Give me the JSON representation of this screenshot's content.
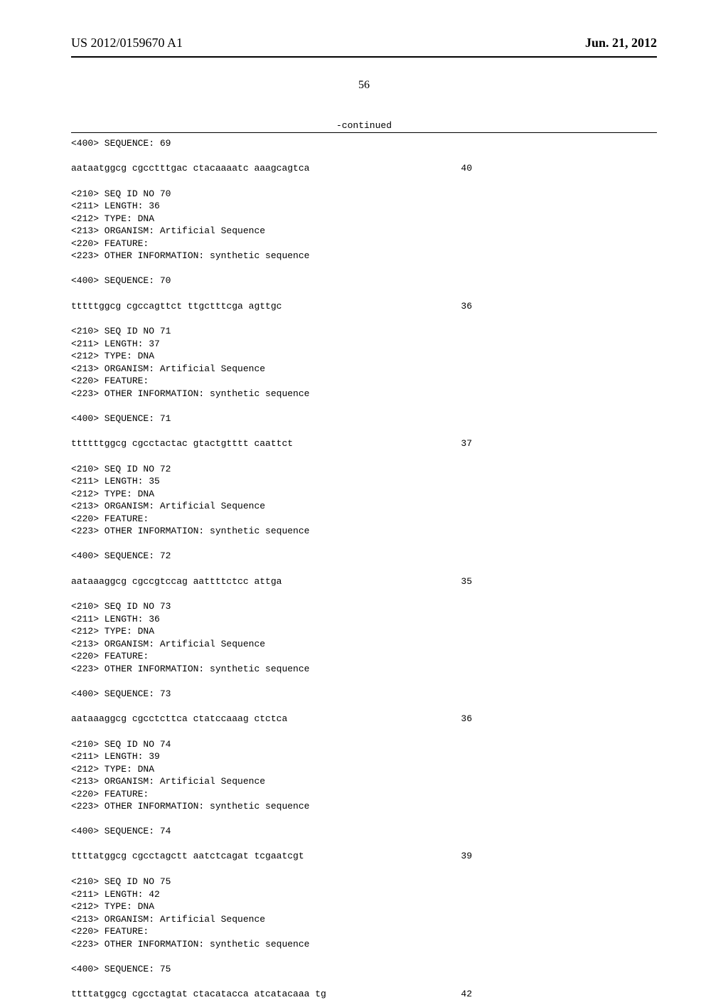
{
  "header": {
    "publication_number": "US 2012/0159670 A1",
    "publication_date": "Jun. 21, 2012"
  },
  "page_number": "56",
  "continued_label": "-continued",
  "sequences": [
    {
      "header_lines": [
        "<400> SEQUENCE: 69"
      ],
      "sequence": "aataatggcg cgcctttgac ctacaaaatc aaagcagtca",
      "length": "40"
    },
    {
      "header_lines": [
        "<210> SEQ ID NO 70",
        "<211> LENGTH: 36",
        "<212> TYPE: DNA",
        "<213> ORGANISM: Artificial Sequence",
        "<220> FEATURE:",
        "<223> OTHER INFORMATION: synthetic sequence",
        "",
        "<400> SEQUENCE: 70"
      ],
      "sequence": "tttttggcg cgccagttct ttgctttcga agttgc",
      "length": "36"
    },
    {
      "header_lines": [
        "<210> SEQ ID NO 71",
        "<211> LENGTH: 37",
        "<212> TYPE: DNA",
        "<213> ORGANISM: Artificial Sequence",
        "<220> FEATURE:",
        "<223> OTHER INFORMATION: synthetic sequence",
        "",
        "<400> SEQUENCE: 71"
      ],
      "sequence": "ttttttggcg cgcctactac gtactgtttt caattct",
      "length": "37"
    },
    {
      "header_lines": [
        "<210> SEQ ID NO 72",
        "<211> LENGTH: 35",
        "<212> TYPE: DNA",
        "<213> ORGANISM: Artificial Sequence",
        "<220> FEATURE:",
        "<223> OTHER INFORMATION: synthetic sequence",
        "",
        "<400> SEQUENCE: 72"
      ],
      "sequence": "aataaaggcg cgccgtccag aattttctcc attga",
      "length": "35"
    },
    {
      "header_lines": [
        "<210> SEQ ID NO 73",
        "<211> LENGTH: 36",
        "<212> TYPE: DNA",
        "<213> ORGANISM: Artificial Sequence",
        "<220> FEATURE:",
        "<223> OTHER INFORMATION: synthetic sequence",
        "",
        "<400> SEQUENCE: 73"
      ],
      "sequence": "aataaaggcg cgcctcttca ctatccaaag ctctca",
      "length": "36"
    },
    {
      "header_lines": [
        "<210> SEQ ID NO 74",
        "<211> LENGTH: 39",
        "<212> TYPE: DNA",
        "<213> ORGANISM: Artificial Sequence",
        "<220> FEATURE:",
        "<223> OTHER INFORMATION: synthetic sequence",
        "",
        "<400> SEQUENCE: 74"
      ],
      "sequence": "ttttatggcg cgcctagctt aatctcagat tcgaatcgt",
      "length": "39"
    },
    {
      "header_lines": [
        "<210> SEQ ID NO 75",
        "<211> LENGTH: 42",
        "<212> TYPE: DNA",
        "<213> ORGANISM: Artificial Sequence",
        "<220> FEATURE:",
        "<223> OTHER INFORMATION: synthetic sequence",
        "",
        "<400> SEQUENCE: 75"
      ],
      "sequence": "ttttatggcg cgcctagtat ctacatacca atcatacaaa tg",
      "length": "42"
    }
  ]
}
